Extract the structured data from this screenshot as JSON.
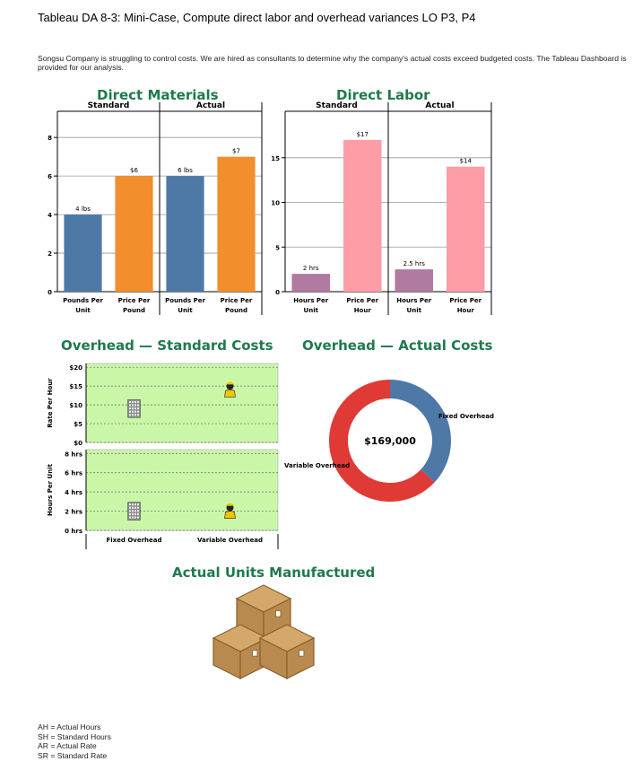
{
  "page": {
    "title": "Tableau DA 8-3: Mini-Case, Compute direct labor and overhead variances LO P3, P4",
    "intro": "Songsu Company is struggling to control costs. We are hired as consultants to determine why the company's actual costs exceed budgeted costs. The Tableau Dashboard is provided for our analysis.",
    "units_title": "Actual Units Manufactured",
    "abbreviations": [
      "AH = Actual Hours",
      "SH = Standard Hours",
      "AR = Actual Rate",
      "SR = Standard Rate"
    ]
  },
  "colors": {
    "heading_green": "#1f7a4d",
    "blue": "#4e79a7",
    "orange": "#f28e2b",
    "pink": "#ff9da7",
    "purple": "#b07aa1",
    "light_green": "#c9f7a7",
    "red": "#e03a36"
  },
  "chart_data": [
    {
      "type": "bar",
      "title": "Direct Materials",
      "groups": [
        "Standard",
        "Actual"
      ],
      "categories": [
        "Pounds Per Unit",
        "Price Per Pound",
        "Pounds Per Unit",
        "Price Per Pound"
      ],
      "values": [
        4,
        6,
        6,
        7
      ],
      "data_labels": [
        "4 lbs",
        "$6",
        "6 lbs",
        "$7"
      ],
      "colors": [
        "#4e79a7",
        "#f28e2b",
        "#4e79a7",
        "#f28e2b"
      ],
      "ylim": [
        0,
        8.8
      ],
      "yticks": [
        0,
        2,
        4,
        6,
        8
      ],
      "grid": true
    },
    {
      "type": "bar",
      "title": "Direct Labor",
      "groups": [
        "Standard",
        "Actual"
      ],
      "categories": [
        "Hours Per Unit",
        "Price Per Hour",
        "Hours Per Unit",
        "Price Per Hour"
      ],
      "values": [
        2,
        17,
        2.5,
        14
      ],
      "data_labels": [
        "2 hrs",
        "$17",
        "2.5 hrs",
        "$14"
      ],
      "colors": [
        "#b07aa1",
        "#ff9da7",
        "#b07aa1",
        "#ff9da7"
      ],
      "ylim": [
        0,
        19
      ],
      "yticks": [
        0,
        5,
        10,
        15
      ],
      "grid": true
    },
    {
      "type": "scatter",
      "title": "Overhead — Standard Costs",
      "categories": [
        "Fixed Overhead",
        "Variable Overhead"
      ],
      "rows": [
        {
          "ylabel": "Rate Per Hour",
          "yticks": [
            "$0",
            "$5",
            "$10",
            "$15",
            "$20"
          ],
          "ytick_values": [
            0,
            5,
            10,
            15,
            20
          ],
          "ylim": [
            0,
            21
          ],
          "values": [
            9,
            14
          ]
        },
        {
          "ylabel": "Hours Per Unit",
          "yticks": [
            "0 hrs",
            "2 hrs",
            "4 hrs",
            "6 hrs",
            "8 hrs"
          ],
          "ytick_values": [
            0,
            2,
            4,
            6,
            8
          ],
          "ylim": [
            0,
            8.4
          ],
          "values": [
            2,
            2
          ]
        }
      ],
      "markers": [
        "building-icon",
        "worker-icon"
      ]
    },
    {
      "type": "pie",
      "title": "Overhead — Actual Costs",
      "total_label": "$169,000",
      "labels": [
        "Fixed Overhead",
        "Variable Overhead"
      ],
      "fractions": [
        0.37,
        0.63
      ],
      "colors": [
        "#4e79a7",
        "#e03a36"
      ]
    }
  ]
}
